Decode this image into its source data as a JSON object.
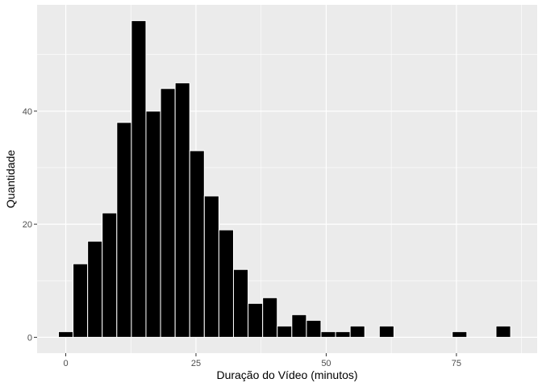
{
  "chart_data": {
    "type": "bar",
    "subtype": "histogram",
    "xlabel": "Duração do Vídeo (minutos)",
    "ylabel": "Quantidade",
    "xlim": [
      -5.5,
      90.5
    ],
    "ylim": [
      -2.8,
      58.8
    ],
    "x_ticks": [
      0,
      25,
      50,
      75
    ],
    "x_tick_labels": [
      "0",
      "25",
      "50",
      "75"
    ],
    "y_ticks": [
      0,
      20,
      40
    ],
    "y_tick_labels": [
      "0",
      "20",
      "40"
    ],
    "bin_width": 2.8,
    "bin_centers": [
      0,
      2.8,
      5.6,
      8.4,
      11.2,
      14.0,
      16.8,
      19.6,
      22.4,
      25.2,
      28.0,
      30.8,
      33.6,
      36.4,
      39.2,
      42.0,
      44.8,
      47.6,
      50.4,
      53.2,
      56.0,
      58.8,
      61.6,
      64.4,
      67.2,
      70.0,
      72.8,
      75.6,
      78.4,
      81.2,
      84.0
    ],
    "values": [
      1,
      13,
      17,
      22,
      38,
      56,
      40,
      44,
      45,
      33,
      25,
      19,
      12,
      6,
      7,
      2,
      4,
      3,
      1,
      1,
      2,
      0,
      2,
      0,
      0,
      0,
      0,
      1,
      0,
      0,
      2
    ],
    "grid": true,
    "bar_fill": "#000000",
    "bar_outline": "#ffffff",
    "panel_background": "#ebebeb",
    "grid_color": "#ffffff"
  }
}
